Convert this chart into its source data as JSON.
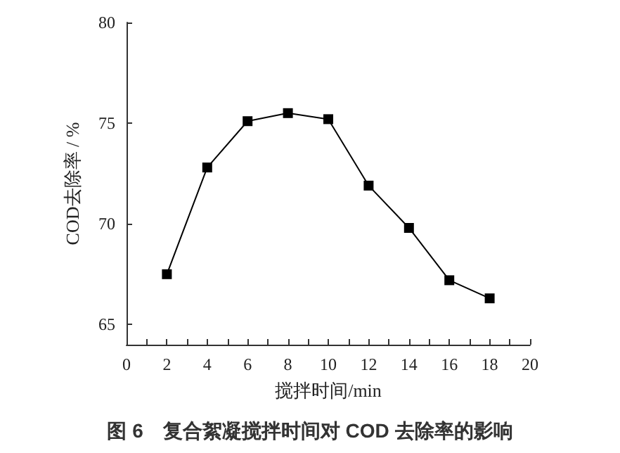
{
  "chart_data": {
    "type": "line",
    "title": "图 6　复合絮凝搅拌时间对 COD 去除率的影响",
    "xlabel": "搅拌时间/min",
    "ylabel": "COD去除率 / %",
    "x": [
      2,
      4,
      6,
      8,
      10,
      12,
      14,
      16,
      18
    ],
    "series": [
      {
        "color": "#000000",
        "values": [
          67.5,
          72.8,
          75.1,
          75.5,
          75.2,
          71.9,
          69.8,
          67.2,
          66.3
        ]
      }
    ],
    "xlim": [
      0,
      20
    ],
    "xticks": [
      0,
      {
        "value": 1,
        "label": null
      },
      2,
      {
        "value": 3,
        "label": null
      },
      4,
      {
        "value": 5,
        "label": null
      },
      6,
      {
        "value": 7,
        "label": null
      },
      8,
      {
        "value": 9,
        "label": null
      },
      10,
      {
        "value": 11,
        "label": null
      },
      12,
      {
        "value": 13,
        "label": null
      },
      14,
      {
        "value": 15,
        "label": null
      },
      16,
      {
        "value": 17,
        "label": null
      },
      18,
      {
        "value": 19,
        "label": null
      },
      20
    ],
    "ylim": [
      64,
      80
    ],
    "yticks": [
      65,
      70,
      75,
      80
    ],
    "grid": false,
    "marker": "square",
    "line_style": "solid"
  }
}
